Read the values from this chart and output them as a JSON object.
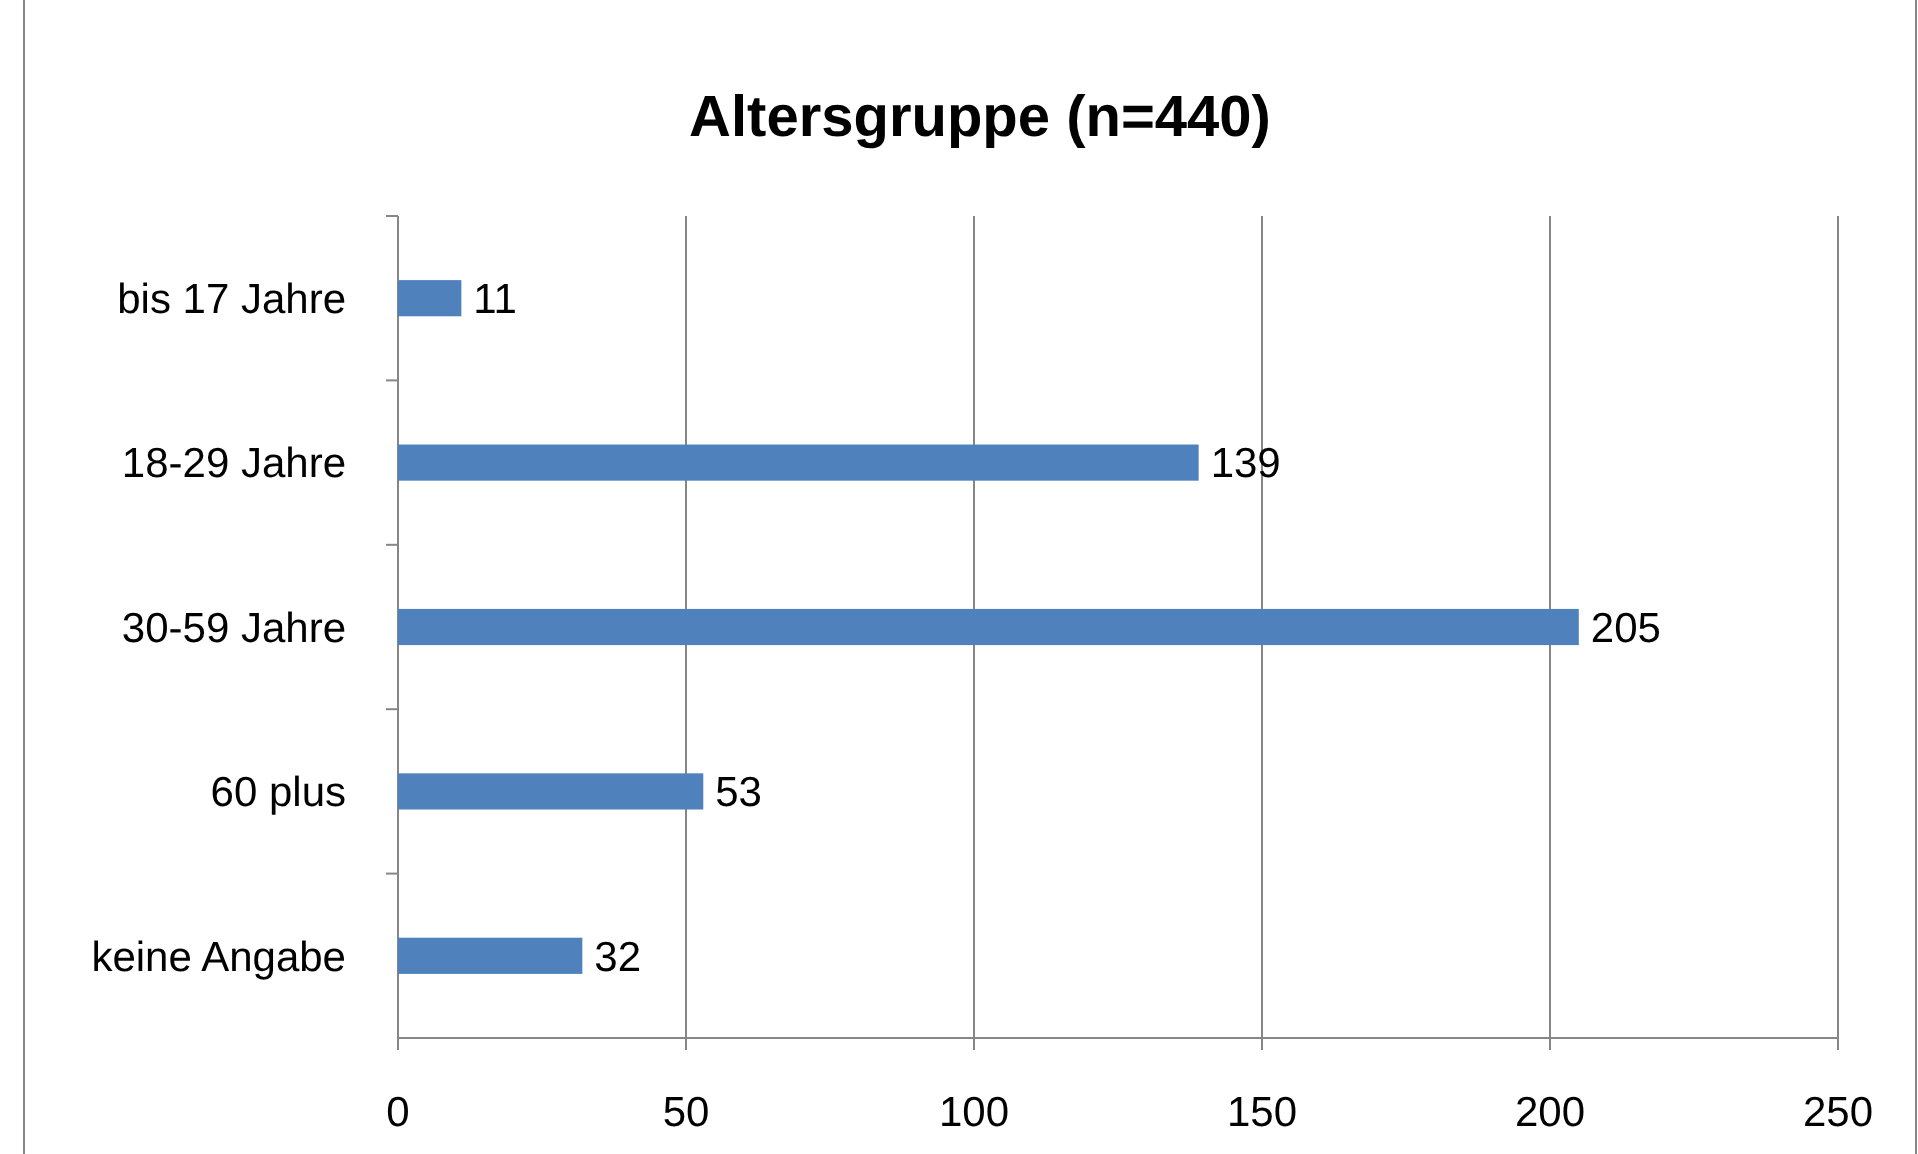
{
  "chart_data": {
    "type": "bar",
    "orientation": "horizontal",
    "title": "Altersgruppe (n=440)",
    "categories": [
      "bis 17 Jahre",
      "18-29 Jahre",
      "30-59 Jahre",
      "60 plus",
      "keine Angabe"
    ],
    "values": [
      11,
      139,
      205,
      53,
      32
    ],
    "color": "#4f81bd",
    "xlim": [
      0,
      250
    ],
    "xticks": [
      0,
      50,
      100,
      150,
      200,
      250
    ],
    "grid": "x",
    "data_labels": true
  }
}
